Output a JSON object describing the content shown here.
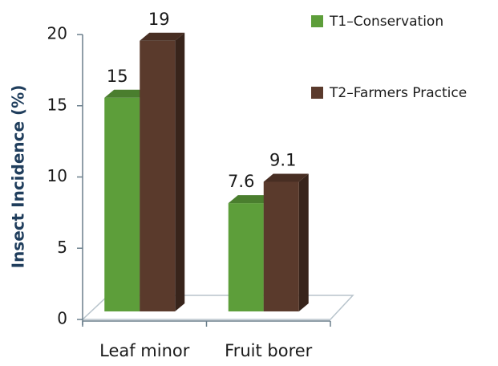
{
  "chart_data": {
    "type": "bar3d",
    "y_label": "Insect Incidence (%)",
    "categories": [
      "Leaf minor",
      "Fruit borer"
    ],
    "series": [
      {
        "name": "T1–Conservation",
        "color": "#5d9e3a",
        "values": [
          15,
          7.6
        ]
      },
      {
        "name": "T2–Farmers Practice",
        "color": "#5a3a2c",
        "values": [
          19,
          9.1
        ]
      }
    ],
    "ylim": [
      0,
      20
    ],
    "yticks": [
      0,
      5,
      10,
      15,
      20
    ]
  }
}
